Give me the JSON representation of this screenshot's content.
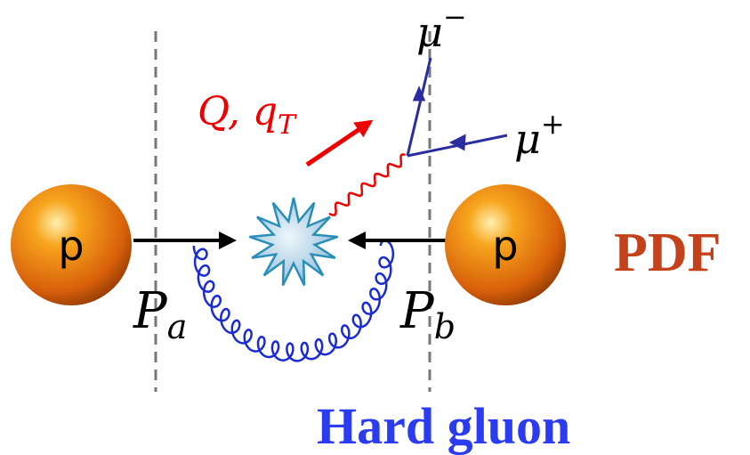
{
  "protons": [
    {
      "label": "p"
    },
    {
      "label": "p"
    }
  ],
  "momenta": [
    {
      "symbol": "P",
      "subscript": "a"
    },
    {
      "symbol": "P",
      "subscript": "b"
    }
  ],
  "boson": {
    "symbol": "Q, q",
    "subscript": "T"
  },
  "leptons": [
    {
      "symbol": "μ",
      "superscript": "−"
    },
    {
      "symbol": "μ",
      "superscript": "+"
    }
  ],
  "labels": {
    "pdf": "PDF",
    "gluon": "Hard gluon"
  }
}
